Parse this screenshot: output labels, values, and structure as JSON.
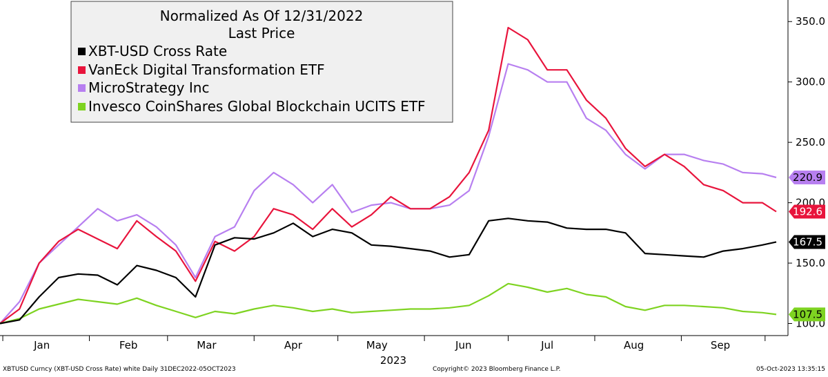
{
  "chart_data": {
    "type": "line",
    "title": "Normalized As Of 12/31/2022",
    "subtitle": "Last Price",
    "year_label": "2023",
    "ylim": [
      90,
      365
    ],
    "y_ticks": [
      100,
      150,
      200,
      250,
      300,
      350
    ],
    "y_tick_labels": [
      "100.0",
      "150.0",
      "200.0",
      "250.0",
      "300.0",
      "350.0"
    ],
    "x_range": [
      "2022-12-31",
      "2023-10-05"
    ],
    "month_ticks": [
      {
        "label": "Jan",
        "date": "2023-01-15"
      },
      {
        "label": "Feb",
        "date": "2023-02-15"
      },
      {
        "label": "Mar",
        "date": "2023-03-15"
      },
      {
        "label": "Apr",
        "date": "2023-04-15"
      },
      {
        "label": "May",
        "date": "2023-05-15"
      },
      {
        "label": "Jun",
        "date": "2023-06-15"
      },
      {
        "label": "Jul",
        "date": "2023-07-15"
      },
      {
        "label": "Aug",
        "date": "2023-08-15"
      },
      {
        "label": "Sep",
        "date": "2023-09-15"
      }
    ],
    "legend_position": "top-left",
    "grid": false,
    "series": [
      {
        "name": "XBT-USD Cross Rate",
        "color": "#000000",
        "last_value": 167.5,
        "last_label": "167.5",
        "points": [
          [
            "2022-12-31",
            100
          ],
          [
            "2023-01-07",
            103
          ],
          [
            "2023-01-14",
            122
          ],
          [
            "2023-01-21",
            138
          ],
          [
            "2023-01-28",
            141
          ],
          [
            "2023-02-04",
            140
          ],
          [
            "2023-02-11",
            132
          ],
          [
            "2023-02-18",
            148
          ],
          [
            "2023-02-25",
            144
          ],
          [
            "2023-03-04",
            138
          ],
          [
            "2023-03-11",
            122
          ],
          [
            "2023-03-18",
            165
          ],
          [
            "2023-03-25",
            171
          ],
          [
            "2023-04-01",
            170
          ],
          [
            "2023-04-08",
            175
          ],
          [
            "2023-04-15",
            183
          ],
          [
            "2023-04-22",
            172
          ],
          [
            "2023-04-29",
            178
          ],
          [
            "2023-05-06",
            175
          ],
          [
            "2023-05-13",
            165
          ],
          [
            "2023-05-20",
            164
          ],
          [
            "2023-05-27",
            162
          ],
          [
            "2023-06-03",
            160
          ],
          [
            "2023-06-10",
            155
          ],
          [
            "2023-06-17",
            157
          ],
          [
            "2023-06-24",
            185
          ],
          [
            "2023-07-01",
            187
          ],
          [
            "2023-07-08",
            185
          ],
          [
            "2023-07-15",
            184
          ],
          [
            "2023-07-22",
            179
          ],
          [
            "2023-07-29",
            178
          ],
          [
            "2023-08-05",
            178
          ],
          [
            "2023-08-12",
            175
          ],
          [
            "2023-08-19",
            158
          ],
          [
            "2023-08-26",
            157
          ],
          [
            "2023-09-02",
            156
          ],
          [
            "2023-09-09",
            155
          ],
          [
            "2023-09-16",
            160
          ],
          [
            "2023-09-23",
            162
          ],
          [
            "2023-09-30",
            165
          ],
          [
            "2023-10-05",
            167.5
          ]
        ]
      },
      {
        "name": "VanEck Digital Transformation ETF",
        "color": "#e8143c",
        "last_value": 192.6,
        "last_label": "192.6",
        "points": [
          [
            "2022-12-31",
            100
          ],
          [
            "2023-01-07",
            112
          ],
          [
            "2023-01-14",
            150
          ],
          [
            "2023-01-21",
            168
          ],
          [
            "2023-01-28",
            178
          ],
          [
            "2023-02-04",
            170
          ],
          [
            "2023-02-11",
            162
          ],
          [
            "2023-02-18",
            185
          ],
          [
            "2023-02-25",
            172
          ],
          [
            "2023-03-04",
            160
          ],
          [
            "2023-03-11",
            135
          ],
          [
            "2023-03-18",
            168
          ],
          [
            "2023-03-25",
            160
          ],
          [
            "2023-04-01",
            172
          ],
          [
            "2023-04-08",
            195
          ],
          [
            "2023-04-15",
            190
          ],
          [
            "2023-04-22",
            178
          ],
          [
            "2023-04-29",
            195
          ],
          [
            "2023-05-06",
            180
          ],
          [
            "2023-05-13",
            190
          ],
          [
            "2023-05-20",
            205
          ],
          [
            "2023-05-27",
            195
          ],
          [
            "2023-06-03",
            195
          ],
          [
            "2023-06-10",
            205
          ],
          [
            "2023-06-17",
            225
          ],
          [
            "2023-06-24",
            260
          ],
          [
            "2023-07-01",
            345
          ],
          [
            "2023-07-08",
            335
          ],
          [
            "2023-07-15",
            310
          ],
          [
            "2023-07-22",
            310
          ],
          [
            "2023-07-29",
            285
          ],
          [
            "2023-08-05",
            270
          ],
          [
            "2023-08-12",
            245
          ],
          [
            "2023-08-19",
            230
          ],
          [
            "2023-08-26",
            240
          ],
          [
            "2023-09-02",
            230
          ],
          [
            "2023-09-09",
            215
          ],
          [
            "2023-09-16",
            210
          ],
          [
            "2023-09-23",
            200
          ],
          [
            "2023-09-30",
            200
          ],
          [
            "2023-10-05",
            192.6
          ]
        ]
      },
      {
        "name": "MicroStrategy Inc",
        "color": "#b77ff0",
        "last_value": 220.9,
        "last_label": "220.9",
        "points": [
          [
            "2022-12-31",
            100
          ],
          [
            "2023-01-07",
            118
          ],
          [
            "2023-01-14",
            150
          ],
          [
            "2023-01-21",
            165
          ],
          [
            "2023-01-28",
            180
          ],
          [
            "2023-02-04",
            195
          ],
          [
            "2023-02-11",
            185
          ],
          [
            "2023-02-18",
            190
          ],
          [
            "2023-02-25",
            180
          ],
          [
            "2023-03-04",
            165
          ],
          [
            "2023-03-11",
            138
          ],
          [
            "2023-03-18",
            172
          ],
          [
            "2023-03-25",
            180
          ],
          [
            "2023-04-01",
            210
          ],
          [
            "2023-04-08",
            225
          ],
          [
            "2023-04-15",
            215
          ],
          [
            "2023-04-22",
            200
          ],
          [
            "2023-04-29",
            215
          ],
          [
            "2023-05-06",
            192
          ],
          [
            "2023-05-13",
            198
          ],
          [
            "2023-05-20",
            200
          ],
          [
            "2023-05-27",
            195
          ],
          [
            "2023-06-03",
            195
          ],
          [
            "2023-06-10",
            198
          ],
          [
            "2023-06-17",
            210
          ],
          [
            "2023-06-24",
            255
          ],
          [
            "2023-07-01",
            315
          ],
          [
            "2023-07-08",
            310
          ],
          [
            "2023-07-15",
            300
          ],
          [
            "2023-07-22",
            300
          ],
          [
            "2023-07-29",
            270
          ],
          [
            "2023-08-05",
            260
          ],
          [
            "2023-08-12",
            240
          ],
          [
            "2023-08-19",
            228
          ],
          [
            "2023-08-26",
            240
          ],
          [
            "2023-09-02",
            240
          ],
          [
            "2023-09-09",
            235
          ],
          [
            "2023-09-16",
            232
          ],
          [
            "2023-09-23",
            225
          ],
          [
            "2023-09-30",
            224
          ],
          [
            "2023-10-05",
            220.9
          ]
        ]
      },
      {
        "name": "Invesco CoinShares Global Blockchain UCITS ETF",
        "color": "#7ed321",
        "last_value": 107.5,
        "last_label": "107.5",
        "points": [
          [
            "2022-12-31",
            100
          ],
          [
            "2023-01-07",
            104
          ],
          [
            "2023-01-14",
            112
          ],
          [
            "2023-01-21",
            116
          ],
          [
            "2023-01-28",
            120
          ],
          [
            "2023-02-04",
            118
          ],
          [
            "2023-02-11",
            116
          ],
          [
            "2023-02-18",
            121
          ],
          [
            "2023-02-25",
            115
          ],
          [
            "2023-03-04",
            110
          ],
          [
            "2023-03-11",
            105
          ],
          [
            "2023-03-18",
            110
          ],
          [
            "2023-03-25",
            108
          ],
          [
            "2023-04-01",
            112
          ],
          [
            "2023-04-08",
            115
          ],
          [
            "2023-04-15",
            113
          ],
          [
            "2023-04-22",
            110
          ],
          [
            "2023-04-29",
            112
          ],
          [
            "2023-05-06",
            109
          ],
          [
            "2023-05-13",
            110
          ],
          [
            "2023-05-20",
            111
          ],
          [
            "2023-05-27",
            112
          ],
          [
            "2023-06-03",
            112
          ],
          [
            "2023-06-10",
            113
          ],
          [
            "2023-06-17",
            115
          ],
          [
            "2023-06-24",
            123
          ],
          [
            "2023-07-01",
            133
          ],
          [
            "2023-07-08",
            130
          ],
          [
            "2023-07-15",
            126
          ],
          [
            "2023-07-22",
            129
          ],
          [
            "2023-07-29",
            124
          ],
          [
            "2023-08-05",
            122
          ],
          [
            "2023-08-12",
            114
          ],
          [
            "2023-08-19",
            111
          ],
          [
            "2023-08-26",
            115
          ],
          [
            "2023-09-02",
            115
          ],
          [
            "2023-09-09",
            114
          ],
          [
            "2023-09-16",
            113
          ],
          [
            "2023-09-23",
            110
          ],
          [
            "2023-09-30",
            109
          ],
          [
            "2023-10-05",
            107.5
          ]
        ]
      }
    ]
  },
  "footer": {
    "left": "XBTUSD Curncy (XBT-USD Cross Rate) white  Daily 31DEC2022-05OCT2023",
    "center": "Copyright© 2023 Bloomberg Finance L.P.",
    "right": "05-Oct-2023 13:35:15"
  }
}
